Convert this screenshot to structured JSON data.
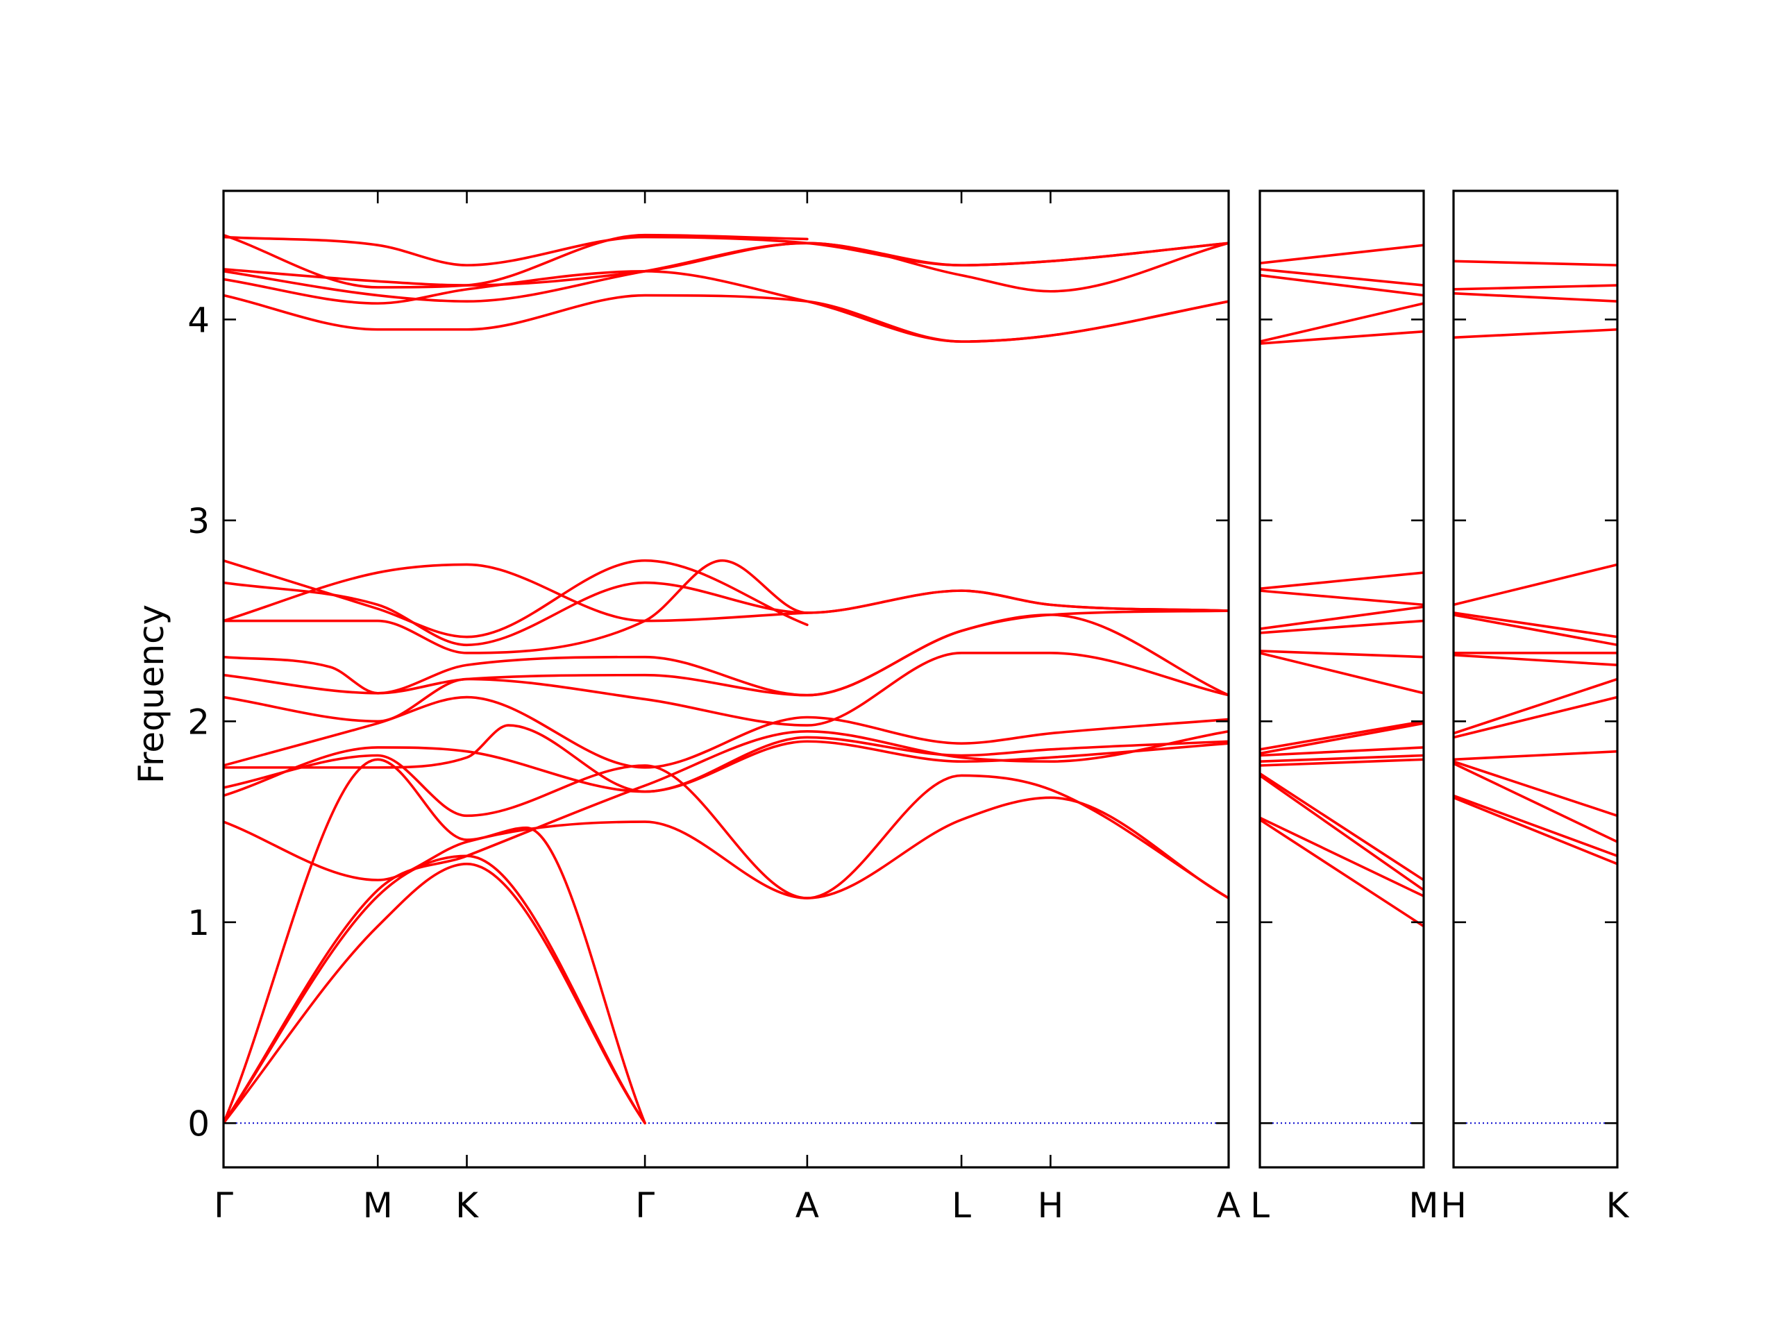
{
  "chart_data": {
    "type": "line",
    "ylabel": "Frequency",
    "xlabel": "",
    "ylim": [
      -0.22,
      4.64
    ],
    "yticks": [
      0,
      1,
      2,
      3,
      4
    ],
    "grid": false,
    "legend": "none",
    "colors": {
      "band": "#ff0000",
      "zero_line": "#0000cc",
      "frame": "#000000"
    },
    "panels": [
      {
        "labels": [
          "Γ",
          "M",
          "K",
          "Γ",
          "A",
          "L",
          "H",
          "A"
        ],
        "k": [
          0,
          0.866,
          1.366,
          2.366,
          3.277,
          4.143,
          4.643,
          5.643
        ],
        "bands": [
          {
            "x": [
              0,
              0.866,
              1.366,
              2.366
            ],
            "y": [
              0,
              0.98,
              1.29,
              0
            ]
          },
          {
            "x": [
              0,
              0.866,
              1.366,
              2.366
            ],
            "y": [
              0,
              1.13,
              1.33,
              0
            ]
          },
          {
            "x": [
              0,
              0.866,
              1.366,
              1.7,
              2.366
            ],
            "y": [
              0,
              1.81,
              1.41,
              1.47,
              0
            ]
          },
          {
            "x": [
              0,
              0.866,
              1.366,
              2.366,
              3.277,
              4.143,
              4.643,
              5.643
            ],
            "y": [
              0.0,
              1.16,
              1.33,
              1.68,
              1.95,
              1.82,
              1.8,
              1.95
            ]
          },
          {
            "x": [
              0,
              0.866,
              1.366,
              2.366,
              3.277,
              4.143,
              4.643,
              5.643
            ],
            "y": [
              1.5,
              1.21,
              1.4,
              1.5,
              1.12,
              1.51,
              1.62,
              1.12
            ]
          },
          {
            "x": [
              0,
              0.866,
              1.366,
              2.366,
              3.277,
              4.143,
              4.643,
              5.643
            ],
            "y": [
              1.67,
              1.83,
              1.53,
              1.78,
              1.12,
              1.73,
              1.66,
              1.12
            ]
          },
          {
            "x": [
              0,
              0.866,
              1.366,
              2.366,
              3.277,
              4.143,
              4.643,
              5.643
            ],
            "y": [
              1.63,
              1.87,
              1.85,
              1.65,
              1.9,
              1.8,
              1.82,
              1.89
            ]
          },
          {
            "x": [
              0,
              0.866,
              1.366,
              1.6,
              2.366,
              3.277,
              4.143,
              4.643,
              5.643
            ],
            "y": [
              1.77,
              1.77,
              1.82,
              1.98,
              1.65,
              1.92,
              1.83,
              1.86,
              1.9
            ]
          },
          {
            "x": [
              0,
              0.866,
              1.366,
              2.366,
              3.277,
              4.143,
              4.643,
              5.643
            ],
            "y": [
              1.78,
              1.99,
              2.12,
              1.77,
              2.02,
              1.89,
              1.94,
              2.01
            ]
          },
          {
            "x": [
              0,
              0.866,
              1.366,
              2.366,
              3.277,
              4.143,
              4.643,
              5.643
            ],
            "y": [
              2.12,
              2.0,
              2.21,
              2.11,
              1.98,
              2.34,
              2.34,
              2.13
            ]
          },
          {
            "x": [
              0,
              0.866,
              1.366,
              2.366,
              3.277,
              4.143,
              4.643,
              5.643
            ],
            "y": [
              2.23,
              2.14,
              2.21,
              2.23,
              2.13,
              2.45,
              2.53,
              2.13
            ]
          },
          {
            "x": [
              0,
              0.6,
              0.866,
              1.366,
              2.366,
              3.277,
              4.143,
              4.643,
              5.643
            ],
            "y": [
              2.32,
              2.27,
              2.14,
              2.28,
              2.32,
              2.13,
              2.45,
              2.53,
              2.55
            ]
          },
          {
            "x": [
              0,
              0.866,
              1.366,
              2.366,
              2.8,
              3.277,
              4.143,
              4.643,
              5.643
            ],
            "y": [
              2.5,
              2.5,
              2.34,
              2.5,
              2.8,
              2.54,
              2.65,
              2.58,
              2.55
            ]
          },
          {
            "x": [
              0,
              0.866,
              1.366,
              2.366,
              3.277,
              4.143,
              4.643,
              5.643
            ],
            "y": [
              2.69,
              2.58,
              2.38,
              2.69,
              2.54,
              2.65,
              2.58,
              2.55
            ]
          },
          {
            "x": [
              0,
              0.866,
              1.366,
              2.366,
              3.277
            ],
            "y": [
              2.8,
              2.56,
              2.42,
              2.8,
              2.48
            ]
          },
          {
            "x": [
              0,
              0.866,
              1.366,
              2.366,
              3.277
            ],
            "y": [
              2.5,
              2.74,
              2.78,
              2.5,
              2.54
            ]
          },
          {
            "x": [
              0,
              0.866,
              1.366,
              2.366,
              3.277,
              4.143,
              4.643,
              5.643
            ],
            "y": [
              4.12,
              3.95,
              3.95,
              4.12,
              4.09,
              3.89,
              3.92,
              4.09
            ]
          },
          {
            "x": [
              0,
              0.866,
              1.366,
              2.366,
              3.277,
              4.143,
              4.643,
              5.643
            ],
            "y": [
              4.2,
              4.08,
              4.15,
              4.24,
              4.09,
              3.89,
              3.92,
              4.09
            ]
          },
          {
            "x": [
              0,
              0.866,
              1.366,
              2.366,
              3.277,
              4.143,
              4.643,
              5.643
            ],
            "y": [
              4.24,
              4.12,
              4.09,
              4.24,
              4.38,
              4.22,
              4.14,
              4.38
            ]
          },
          {
            "x": [
              0,
              0.866,
              1.366,
              2.366,
              3.277,
              4.143,
              4.643,
              5.643
            ],
            "y": [
              4.25,
              4.19,
              4.17,
              4.24,
              4.38,
              4.27,
              4.29,
              4.38
            ]
          },
          {
            "x": [
              0,
              0.866,
              1.366,
              2.366,
              3.277,
              4.143,
              4.643,
              5.643
            ],
            "y": [
              4.41,
              4.37,
              4.27,
              4.41,
              4.38,
              4.27,
              4.29,
              4.38
            ]
          },
          {
            "x": [
              0,
              0.866,
              1.366,
              2.366,
              3.277
            ],
            "y": [
              4.42,
              4.16,
              4.17,
              4.42,
              4.4
            ]
          }
        ]
      },
      {
        "labels": [
          "L",
          "M"
        ],
        "k": [
          0,
          0.927
        ],
        "bands": [
          {
            "x": [
              0,
              0.927
            ],
            "y": [
              1.51,
              0.98
            ]
          },
          {
            "x": [
              0,
              0.927
            ],
            "y": [
              1.52,
              1.13
            ]
          },
          {
            "x": [
              0,
              0.927
            ],
            "y": [
              1.73,
              1.16
            ]
          },
          {
            "x": [
              0,
              0.927
            ],
            "y": [
              1.74,
              1.21
            ]
          },
          {
            "x": [
              0,
              0.927
            ],
            "y": [
              1.78,
              1.81
            ]
          },
          {
            "x": [
              0,
              0.927
            ],
            "y": [
              1.8,
              1.83
            ]
          },
          {
            "x": [
              0,
              0.927
            ],
            "y": [
              1.83,
              1.87
            ]
          },
          {
            "x": [
              0,
              0.927
            ],
            "y": [
              1.84,
              1.99
            ]
          },
          {
            "x": [
              0,
              0.927
            ],
            "y": [
              1.86,
              2.0
            ]
          },
          {
            "x": [
              0,
              0.927
            ],
            "y": [
              2.34,
              2.14
            ]
          },
          {
            "x": [
              0,
              0.927
            ],
            "y": [
              2.35,
              2.32
            ]
          },
          {
            "x": [
              0,
              0.927
            ],
            "y": [
              2.44,
              2.5
            ]
          },
          {
            "x": [
              0,
              0.927
            ],
            "y": [
              2.46,
              2.57
            ]
          },
          {
            "x": [
              0,
              0.927
            ],
            "y": [
              2.65,
              2.58
            ]
          },
          {
            "x": [
              0,
              0.927
            ],
            "y": [
              2.66,
              2.74
            ]
          },
          {
            "x": [
              0,
              0.927
            ],
            "y": [
              3.88,
              3.94
            ]
          },
          {
            "x": [
              0,
              0.927
            ],
            "y": [
              3.89,
              4.08
            ]
          },
          {
            "x": [
              0,
              0.927
            ],
            "y": [
              4.22,
              4.12
            ]
          },
          {
            "x": [
              0,
              0.927
            ],
            "y": [
              4.25,
              4.17
            ]
          },
          {
            "x": [
              0,
              0.927
            ],
            "y": [
              4.28,
              4.37
            ]
          }
        ]
      },
      {
        "labels": [
          "H",
          "K"
        ],
        "k": [
          0,
          0.927
        ],
        "bands": [
          {
            "x": [
              0,
              0.927
            ],
            "y": [
              1.62,
              1.29
            ]
          },
          {
            "x": [
              0,
              0.927
            ],
            "y": [
              1.63,
              1.33
            ]
          },
          {
            "x": [
              0,
              0.927
            ],
            "y": [
              1.79,
              1.4
            ]
          },
          {
            "x": [
              0,
              0.927
            ],
            "y": [
              1.8,
              1.53
            ]
          },
          {
            "x": [
              0,
              0.927
            ],
            "y": [
              1.81,
              1.85
            ]
          },
          {
            "x": [
              0,
              0.927
            ],
            "y": [
              1.92,
              2.12
            ]
          },
          {
            "x": [
              0,
              0.927
            ],
            "y": [
              1.94,
              2.21
            ]
          },
          {
            "x": [
              0,
              0.927
            ],
            "y": [
              2.33,
              2.28
            ]
          },
          {
            "x": [
              0,
              0.927
            ],
            "y": [
              2.34,
              2.34
            ]
          },
          {
            "x": [
              0,
              0.927
            ],
            "y": [
              2.53,
              2.38
            ]
          },
          {
            "x": [
              0,
              0.927
            ],
            "y": [
              2.54,
              2.42
            ]
          },
          {
            "x": [
              0,
              0.927
            ],
            "y": [
              2.58,
              2.78
            ]
          },
          {
            "x": [
              0,
              0.927
            ],
            "y": [
              3.91,
              3.95
            ]
          },
          {
            "x": [
              0,
              0.927
            ],
            "y": [
              4.13,
              4.09
            ]
          },
          {
            "x": [
              0,
              0.927
            ],
            "y": [
              4.15,
              4.17
            ]
          },
          {
            "x": [
              0,
              0.927
            ],
            "y": [
              4.29,
              4.27
            ]
          }
        ]
      }
    ]
  }
}
